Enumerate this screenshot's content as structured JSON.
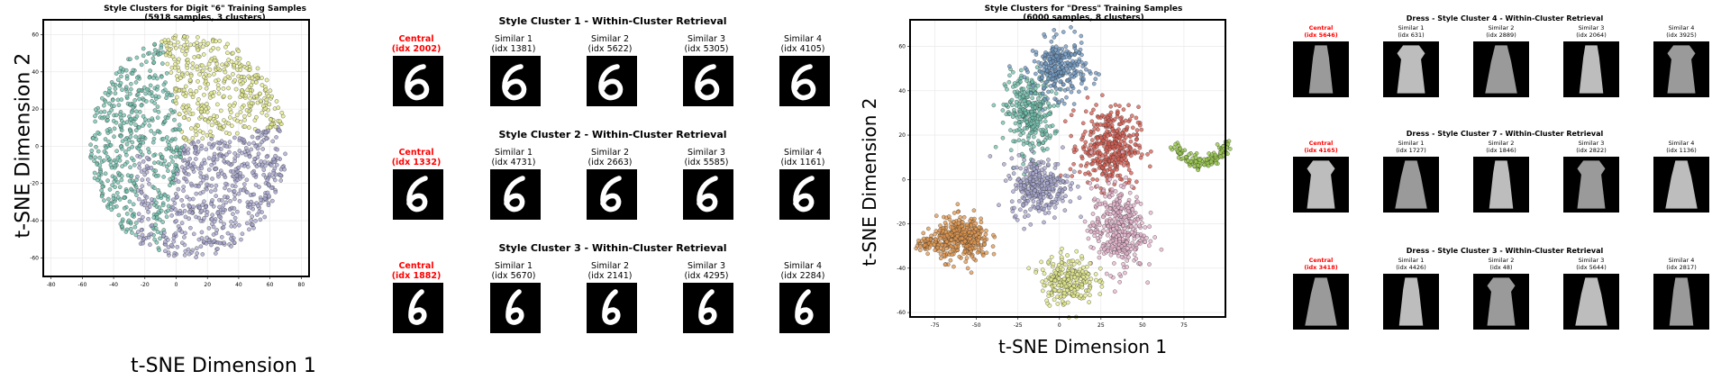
{
  "colors": {
    "teal": "#6fc1ad",
    "yellow": "#e6ec8a",
    "lavender": "#a7a6d0",
    "blue": "#6f98c3",
    "red": "#d95c50",
    "orange": "#e3974c",
    "green": "#9ccc4f",
    "pink": "#e8b4cf",
    "central_red": "#ff0000"
  },
  "chart_data": [
    {
      "type": "scatter",
      "title": "Style Clusters for Digit \"6\" Training Samples",
      "subtitle": "(5918 samples, 3 clusters)",
      "xlabel": "t-SNE Dimension 1",
      "ylabel": "t-SNE Dimension 2",
      "xlim": [
        -85,
        85
      ],
      "ylim": [
        -70,
        68
      ],
      "xticks": [
        -80,
        -60,
        -40,
        -20,
        0,
        20,
        40,
        60,
        80
      ],
      "yticks": [
        -60,
        -40,
        -20,
        0,
        20,
        40,
        60
      ],
      "grid": true,
      "series": [
        {
          "color": "teal",
          "center": [
            -45,
            0
          ],
          "count": 1900
        },
        {
          "color": "yellow",
          "center": [
            28,
            30
          ],
          "count": 1900
        },
        {
          "color": "lavender",
          "center": [
            15,
            -30
          ],
          "count": 2118
        }
      ]
    },
    {
      "type": "scatter",
      "title": "Style Clusters for \"Dress\" Training Samples",
      "subtitle": "(6000 samples, 8 clusters)",
      "xlabel": "t-SNE Dimension 1",
      "ylabel": "t-SNE Dimension 2",
      "xlim": [
        -90,
        100
      ],
      "ylim": [
        -62,
        72
      ],
      "xticks": [
        -75,
        -50,
        -25,
        0,
        25,
        50,
        75
      ],
      "yticks": [
        -60,
        -40,
        -20,
        0,
        20,
        40,
        60
      ],
      "grid": true,
      "series": [
        {
          "color": "teal",
          "center": [
            -18,
            30
          ],
          "count": 800
        },
        {
          "color": "blue",
          "center": [
            2,
            50
          ],
          "count": 700
        },
        {
          "color": "red",
          "center": [
            30,
            15
          ],
          "count": 900
        },
        {
          "color": "lavender",
          "center": [
            -10,
            -5
          ],
          "count": 700
        },
        {
          "color": "pink",
          "center": [
            35,
            -25
          ],
          "count": 1000
        },
        {
          "color": "yellow",
          "center": [
            5,
            -45
          ],
          "count": 600
        },
        {
          "color": "orange",
          "center": [
            -55,
            -27
          ],
          "count": 900
        },
        {
          "color": "green",
          "center": [
            85,
            10
          ],
          "count": 400
        }
      ]
    }
  ],
  "left_retrieval": {
    "rows": [
      {
        "title": "Style Cluster 1 - Within-Cluster Retrieval",
        "items": [
          {
            "label": "Central",
            "idx": "(idx 2002)"
          },
          {
            "label": "Similar 1",
            "idx": "(idx 1381)"
          },
          {
            "label": "Similar 2",
            "idx": "(idx 5622)"
          },
          {
            "label": "Similar 3",
            "idx": "(idx 5305)"
          },
          {
            "label": "Similar 4",
            "idx": "(idx 4105)"
          }
        ]
      },
      {
        "title": "Style Cluster 2 - Within-Cluster Retrieval",
        "items": [
          {
            "label": "Central",
            "idx": "(idx 1332)"
          },
          {
            "label": "Similar 1",
            "idx": "(idx 4731)"
          },
          {
            "label": "Similar 2",
            "idx": "(idx 2663)"
          },
          {
            "label": "Similar 3",
            "idx": "(idx 5585)"
          },
          {
            "label": "Similar 4",
            "idx": "(idx 1161)"
          }
        ]
      },
      {
        "title": "Style Cluster 3 - Within-Cluster Retrieval",
        "items": [
          {
            "label": "Central",
            "idx": "(idx 1882)"
          },
          {
            "label": "Similar 1",
            "idx": "(idx 5670)"
          },
          {
            "label": "Similar 2",
            "idx": "(idx 2141)"
          },
          {
            "label": "Similar 3",
            "idx": "(idx 4295)"
          },
          {
            "label": "Similar 4",
            "idx": "(idx 2284)"
          }
        ]
      }
    ]
  },
  "right_retrieval": {
    "rows": [
      {
        "title": "Dress - Style Cluster 4 - Within-Cluster Retrieval",
        "items": [
          {
            "label": "Central",
            "idx": "(idx 5646)"
          },
          {
            "label": "Similar 1",
            "idx": "(idx 631)"
          },
          {
            "label": "Similar 2",
            "idx": "(idx 2889)"
          },
          {
            "label": "Similar 3",
            "idx": "(idx 2064)"
          },
          {
            "label": "Similar 4",
            "idx": "(idx 3925)"
          }
        ]
      },
      {
        "title": "Dress - Style Cluster 7 - Within-Cluster Retrieval",
        "items": [
          {
            "label": "Central",
            "idx": "(idx 4165)"
          },
          {
            "label": "Similar 1",
            "idx": "(idx 1727)"
          },
          {
            "label": "Similar 2",
            "idx": "(idx 1846)"
          },
          {
            "label": "Similar 3",
            "idx": "(idx 2822)"
          },
          {
            "label": "Similar 4",
            "idx": "(idx 1136)"
          }
        ]
      },
      {
        "title": "Dress - Style Cluster 3 - Within-Cluster Retrieval",
        "items": [
          {
            "label": "Central",
            "idx": "(idx 3418)"
          },
          {
            "label": "Similar 1",
            "idx": "(idx 4426)"
          },
          {
            "label": "Similar 2",
            "idx": "(idx 48)"
          },
          {
            "label": "Similar 3",
            "idx": "(idx 5644)"
          },
          {
            "label": "Similar 4",
            "idx": "(idx 2817)"
          }
        ]
      }
    ]
  }
}
